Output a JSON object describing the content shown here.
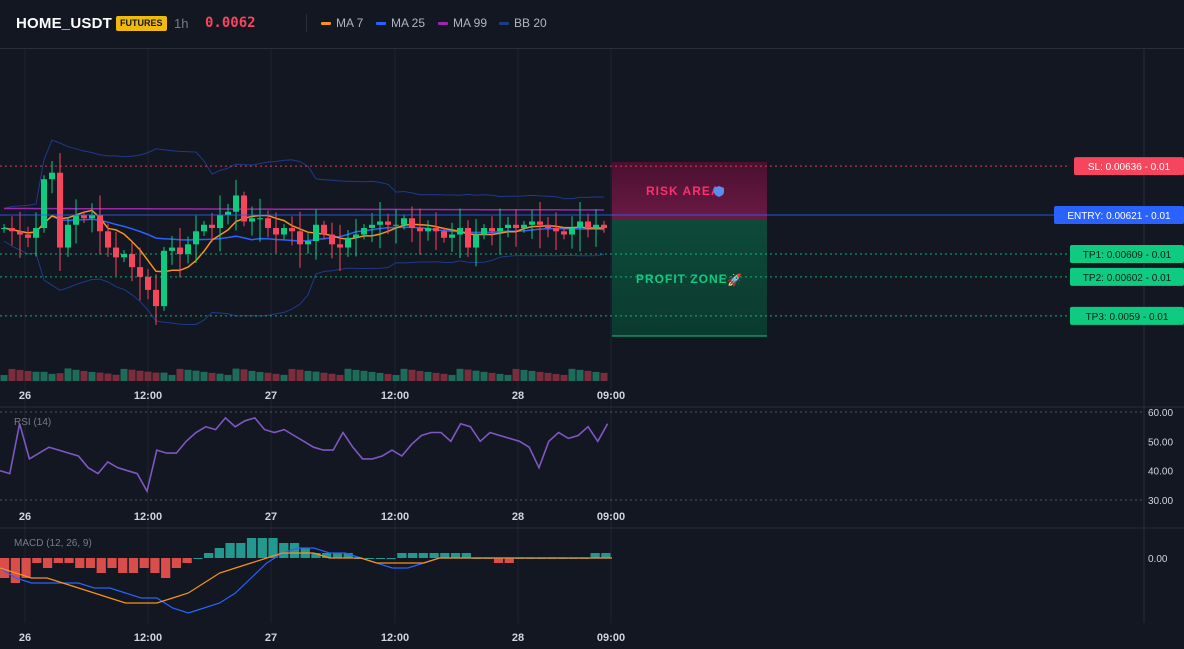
{
  "header": {
    "symbol": "HOME_USDT",
    "badge": "FUTURES",
    "timeframe": "1h",
    "last_price": "0.0062",
    "indicators": [
      {
        "label": "MA 7",
        "color": "#f7931a"
      },
      {
        "label": "MA 25",
        "color": "#2962ff"
      },
      {
        "label": "MA 99",
        "color": "#9c27b0"
      },
      {
        "label": "BB 20",
        "color": "#1e3a8a"
      }
    ]
  },
  "colors": {
    "up": "#0ecb81",
    "down": "#f6465d",
    "ma7": "#f7931a",
    "ma25": "#2962ff",
    "ma99": "#9c27b0",
    "bb": "#1e3a8a",
    "rsi": "#7e57c2",
    "macd_line": "#2962ff",
    "signal_line": "#f7931a"
  },
  "levels": [
    {
      "label": "SL: 0.00636 - 0.01",
      "price": 0.00636,
      "color": "#f6465d"
    },
    {
      "label": "ENTRY: 0.00621 - 0.01",
      "price": 0.00621,
      "color": "#2962ff"
    },
    {
      "label": "TP1: 0.00609 - 0.01",
      "price": 0.00609,
      "color": "#0ecb81"
    },
    {
      "label": "TP2: 0.00602 - 0.01",
      "price": 0.00602,
      "color": "#0ecb81"
    },
    {
      "label": "TP3: 0.0059 - 0.01",
      "price": 0.0059,
      "color": "#0ecb81"
    }
  ],
  "zones": {
    "risk_label": "RISK AREA",
    "profit_label": "PROFIT ZONE"
  },
  "x_ticks": [
    "26",
    "12:00",
    "27",
    "12:00",
    "28",
    "09:00"
  ],
  "rsi": {
    "label": "RSI (14)",
    "ticks": [
      "60.00",
      "50.00",
      "40.00",
      "30.00"
    ]
  },
  "macd": {
    "label": "MACD (12, 26, 9)",
    "ticks": [
      "0.00"
    ]
  },
  "chart_data": [
    {
      "type": "candlestick",
      "title": "HOME_USDT 1h",
      "x_labels": [
        "26",
        "12:00",
        "27",
        "12:00",
        "28",
        "09:00"
      ],
      "price_range": [
        0.0057,
        0.00672
      ],
      "closes": [
        0.00617,
        0.00616,
        0.00615,
        0.00614,
        0.00617,
        0.00632,
        0.00634,
        0.00611,
        0.00618,
        0.00621,
        0.0062,
        0.00621,
        0.00616,
        0.00611,
        0.00608,
        0.00609,
        0.00605,
        0.00602,
        0.00598,
        0.00593,
        0.0061,
        0.00611,
        0.00609,
        0.00612,
        0.00616,
        0.00618,
        0.00617,
        0.00621,
        0.00622,
        0.00627,
        0.00619,
        0.0062,
        0.0062,
        0.00617,
        0.00615,
        0.00617,
        0.00616,
        0.00612,
        0.00613,
        0.00618,
        0.00615,
        0.00612,
        0.00611,
        0.00614,
        0.00615,
        0.00617,
        0.00618,
        0.00619,
        0.00618,
        0.00618,
        0.0062,
        0.00617,
        0.00616,
        0.00617,
        0.00616,
        0.00614,
        0.00615,
        0.00617,
        0.00611,
        0.00615,
        0.00617,
        0.00616,
        0.00617,
        0.00618,
        0.00617,
        0.00618,
        0.00619,
        0.00618,
        0.00617,
        0.00616,
        0.00615,
        0.00617,
        0.00619,
        0.00617,
        0.00618,
        0.00617
      ],
      "series": [
        {
          "name": "MA 7",
          "color": "#f7931a"
        },
        {
          "name": "MA 25",
          "color": "#2962ff"
        },
        {
          "name": "MA 99",
          "color": "#9c27b0"
        },
        {
          "name": "BB 20",
          "color": "#1e3a8a"
        }
      ]
    },
    {
      "type": "line",
      "title": "RSI (14)",
      "ylim": [
        28,
        62
      ],
      "values": [
        40,
        39,
        56,
        44,
        46,
        48,
        47,
        46,
        45,
        41,
        39,
        43,
        41,
        40,
        39,
        33,
        47,
        46,
        46,
        50,
        53,
        55,
        54,
        58,
        55,
        57,
        58,
        54,
        53,
        54,
        52,
        50,
        48,
        47,
        47,
        53,
        48,
        44,
        44,
        45,
        47,
        45,
        49,
        52,
        53,
        53,
        50,
        56,
        55,
        50,
        53,
        52,
        51,
        50,
        48,
        41,
        50,
        53,
        51,
        52,
        55,
        50,
        56
      ]
    },
    {
      "type": "bar",
      "title": "MACD (12, 26, 9)",
      "ylim": [
        -0.00012,
        5e-05
      ],
      "histogram": [
        -4e-05,
        -5e-05,
        -4e-05,
        -1e-05,
        -2e-05,
        -1e-05,
        -1e-05,
        -2e-05,
        -2e-05,
        -3e-05,
        -2e-05,
        -3e-05,
        -3e-05,
        -2e-05,
        -3e-05,
        -4e-05,
        -2e-05,
        -1e-05,
        0.0,
        1e-05,
        2e-05,
        3e-05,
        3e-05,
        4e-05,
        4e-05,
        4e-05,
        3e-05,
        3e-05,
        2e-05,
        1e-05,
        1e-05,
        1e-05,
        1e-05,
        0.0,
        0.0,
        0.0,
        0.0,
        1e-05,
        1e-05,
        1e-05,
        1e-05,
        1e-05,
        1e-05,
        1e-05,
        0.0,
        0.0,
        -1e-05,
        -1e-05,
        0.0,
        0.0,
        0.0,
        0.0,
        0.0,
        0.0,
        0.0,
        1e-05,
        1e-05
      ],
      "macd": [
        -2e-05,
        -4e-05,
        -5e-05,
        -5e-05,
        -5e-05,
        -5e-05,
        -6e-05,
        -6e-05,
        -7e-05,
        -8e-05,
        -8e-05,
        -0.0001,
        -0.00011,
        -0.0001,
        -9e-05,
        -7e-05,
        -4e-05,
        -1e-05,
        1e-05,
        2e-05,
        2e-05,
        1e-05,
        1e-05,
        0.0,
        -1e-05,
        -2e-05,
        -2e-05,
        -1e-05,
        0.0,
        0.0,
        0.0,
        0.0,
        0.0,
        0.0,
        0.0,
        0.0,
        0.0,
        0.0,
        0.0,
        0.0
      ],
      "signal": [
        -2e-05,
        -3e-05,
        -4e-05,
        -4e-05,
        -5e-05,
        -6e-05,
        -7e-05,
        -8e-05,
        -9e-05,
        -9e-05,
        -9e-05,
        -8e-05,
        -7e-05,
        -5e-05,
        -3e-05,
        -2e-05,
        -1e-05,
        0.0,
        1e-05,
        1e-05,
        1e-05,
        0.0,
        0.0,
        0.0,
        -1e-05,
        -1e-05,
        -1e-05,
        -1e-05,
        0.0,
        0.0,
        0.0,
        0.0,
        0.0,
        0.0,
        0.0,
        0.0,
        0.0,
        0.0,
        0.0,
        0.0
      ]
    }
  ]
}
